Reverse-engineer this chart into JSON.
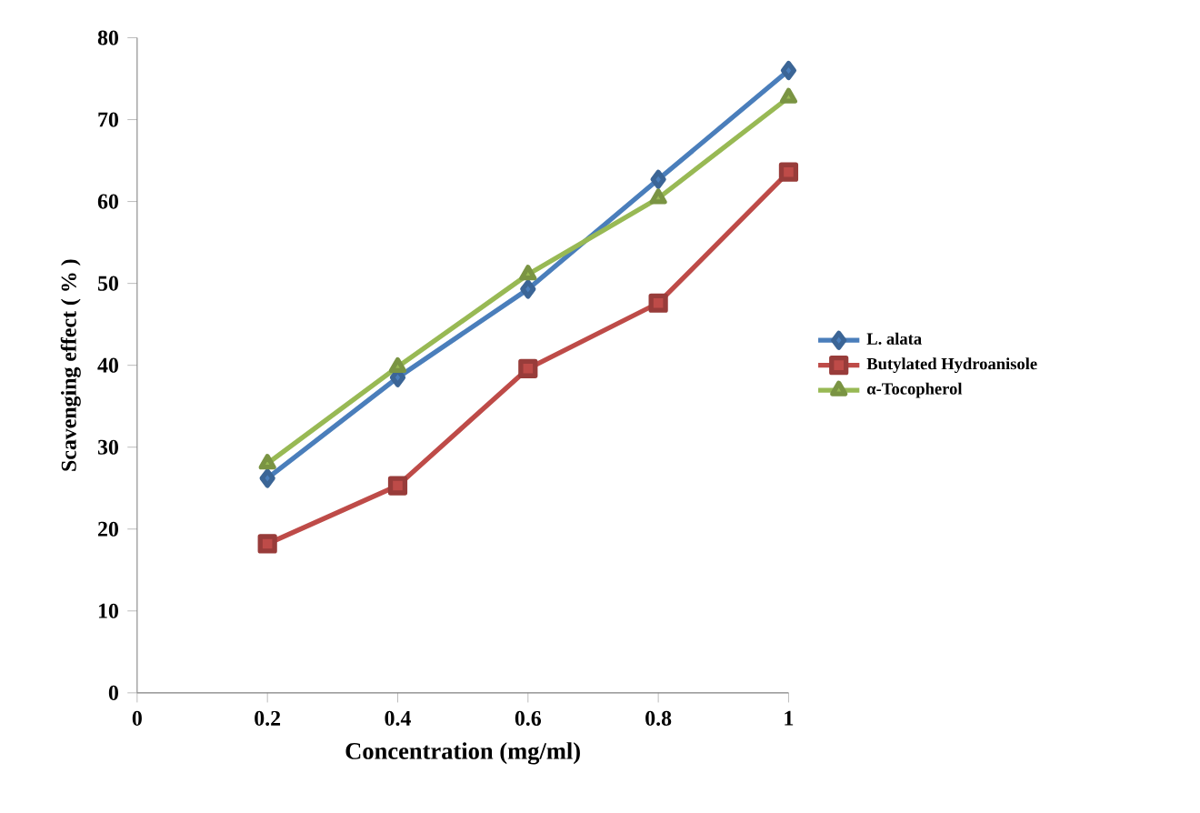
{
  "chart_data": {
    "type": "line",
    "xlabel": "Concentration (mg/ml)",
    "ylabel": "Scavenging effect ( % )",
    "x": [
      0.2,
      0.4,
      0.6,
      0.8,
      1
    ],
    "series": [
      {
        "name": "L. alata",
        "color": "#4a7ebb",
        "marker": "diamond",
        "values": [
          26.2,
          38.5,
          49.3,
          62.7,
          76
        ]
      },
      {
        "name": "Butylated Hydroanisole",
        "color": "#be4b48",
        "marker": "square",
        "values": [
          18.2,
          25.3,
          39.6,
          47.6,
          63.6
        ]
      },
      {
        "name": "α-Tocopherol",
        "color": "#98b954",
        "marker": "triangle",
        "values": [
          28,
          39.8,
          51.1,
          60.4,
          72.7
        ]
      }
    ],
    "xlim": [
      0,
      1
    ],
    "xticks": [
      0,
      0.2,
      0.4,
      0.6,
      0.8,
      1
    ],
    "ylim": [
      0,
      80
    ],
    "yticks": [
      0,
      10,
      20,
      30,
      40,
      50,
      60,
      70,
      80
    ],
    "grid": false,
    "legend": "right"
  }
}
